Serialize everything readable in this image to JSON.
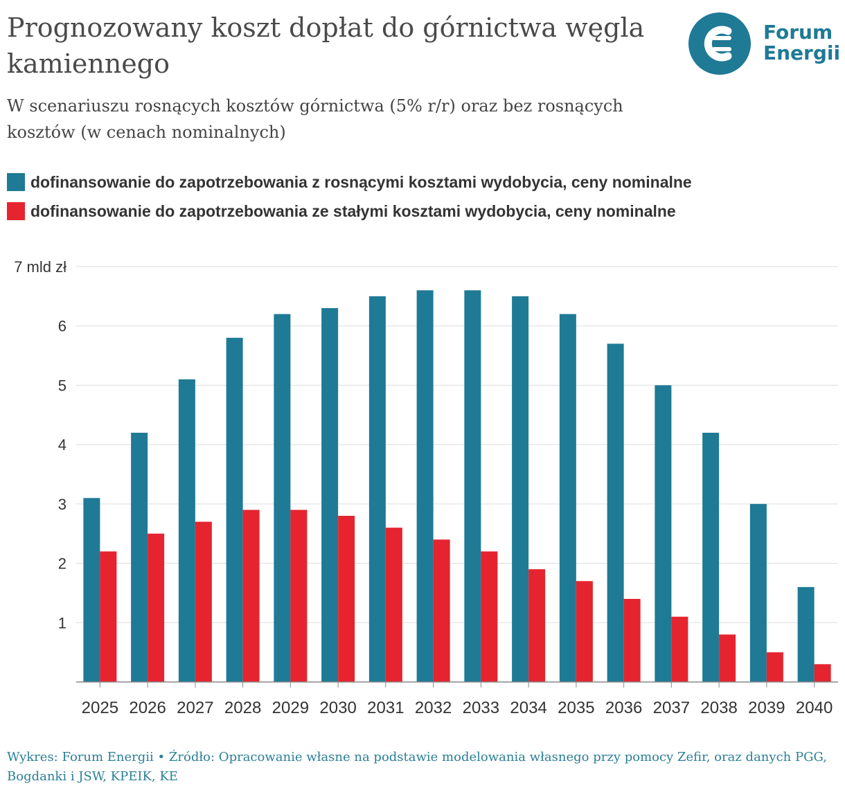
{
  "title": "Prognozowany koszt dopłat do górnictwa węgla kamiennego",
  "subtitle": "W scenariuszu rosnących kosztów górnictwa (5% r/r) oraz bez rosnących kosztów (w cenach nominalnych)",
  "logo": {
    "line1": "Forum",
    "line2": "Energii",
    "color": "#1f7a96",
    "accent": "#e5242f"
  },
  "source": "Wykres: Forum Energii • Źródło: Opracowanie własne na podstawie modelowania własnego przy pomocy Zefir, oraz danych PGG, Bogdanki i JSW, KPEIK, KE",
  "chart_data": {
    "type": "bar",
    "categories": [
      "2025",
      "2026",
      "2027",
      "2028",
      "2029",
      "2030",
      "2031",
      "2032",
      "2033",
      "2034",
      "2035",
      "2036",
      "2037",
      "2038",
      "2039",
      "2040"
    ],
    "series": [
      {
        "name": "dofinansowanie do zapotrzebowania z rosnącymi kosztami wydobycia, ceny nominalne",
        "color": "#1f7a96",
        "values": [
          3.1,
          4.2,
          5.1,
          5.8,
          6.2,
          6.3,
          6.5,
          6.6,
          6.6,
          6.5,
          6.2,
          5.7,
          5.0,
          4.2,
          3.0,
          1.6
        ]
      },
      {
        "name": "dofinansowanie do zapotrzebowania ze stałymi kosztami wydobycia, ceny nominalne",
        "color": "#e5242f",
        "values": [
          2.2,
          2.5,
          2.7,
          2.9,
          2.9,
          2.8,
          2.6,
          2.4,
          2.2,
          1.9,
          1.7,
          1.4,
          1.1,
          0.8,
          0.5,
          0.3
        ]
      }
    ],
    "ylim": [
      0,
      7
    ],
    "yticks": [
      "",
      "1",
      "2",
      "3",
      "4",
      "5",
      "6",
      "7 mld zł"
    ],
    "grid": true
  }
}
